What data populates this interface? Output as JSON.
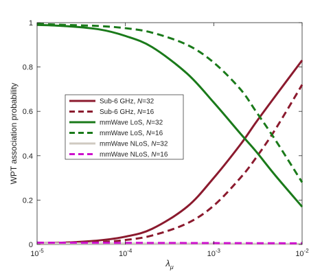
{
  "chart_data": {
    "type": "line",
    "title": "",
    "xlabel": "λ_μ",
    "xlabel_main": "λ",
    "xlabel_sub": "μ",
    "ylabel": "WPT association probability",
    "xscale": "log",
    "xlim": [
      1e-05,
      0.01
    ],
    "ylim": [
      0,
      1
    ],
    "grid": false,
    "legend_position": "center-left",
    "x_ticks": [
      {
        "value": 1e-05,
        "base": "10",
        "exp": "-5"
      },
      {
        "value": 0.0001,
        "base": "10",
        "exp": "-4"
      },
      {
        "value": 0.001,
        "base": "10",
        "exp": "-3"
      },
      {
        "value": 0.01,
        "base": "10",
        "exp": "-2"
      }
    ],
    "y_ticks": [
      {
        "value": 0,
        "label": "0"
      },
      {
        "value": 0.2,
        "label": "0.2"
      },
      {
        "value": 0.4,
        "label": "0.4"
      },
      {
        "value": 0.6,
        "label": "0.6"
      },
      {
        "value": 0.8,
        "label": "0.8"
      },
      {
        "value": 1,
        "label": "1"
      }
    ],
    "series": [
      {
        "name": "Sub-6 GHz, N=32",
        "legend_prefix": "Sub-6 GHz, ",
        "legend_var": "N",
        "legend_suffix": "=32",
        "color": "#8b1a2e",
        "dash": "solid",
        "x": [
          1e-05,
          2e-05,
          5e-05,
          0.0001,
          0.0002,
          0.0005,
          0.001,
          0.002,
          0.003,
          0.005,
          0.01
        ],
        "y": [
          0.005,
          0.008,
          0.018,
          0.035,
          0.07,
          0.17,
          0.3,
          0.45,
          0.55,
          0.67,
          0.83
        ]
      },
      {
        "name": "Sub-6 GHz, N=16",
        "legend_prefix": "Sub-6 GHz, ",
        "legend_var": "N",
        "legend_suffix": "=16",
        "color": "#8b1a2e",
        "dash": "dashed",
        "x": [
          1e-05,
          2e-05,
          5e-05,
          0.0001,
          0.0002,
          0.0005,
          0.001,
          0.002,
          0.003,
          0.005,
          0.01
        ],
        "y": [
          0.003,
          0.005,
          0.01,
          0.02,
          0.04,
          0.095,
          0.175,
          0.3,
          0.39,
          0.52,
          0.72
        ]
      },
      {
        "name": "mmWave LoS, N=32",
        "legend_prefix": "mmWave LoS, ",
        "legend_var": "N",
        "legend_suffix": "=32",
        "color": "#1a7a1a",
        "dash": "solid",
        "x": [
          1e-05,
          2e-05,
          5e-05,
          0.0001,
          0.0002,
          0.0005,
          0.001,
          0.002,
          0.003,
          0.005,
          0.01
        ],
        "y": [
          0.99,
          0.985,
          0.97,
          0.94,
          0.89,
          0.77,
          0.64,
          0.5,
          0.42,
          0.31,
          0.17
        ]
      },
      {
        "name": "mmWave LoS, N=16",
        "legend_prefix": "mmWave LoS, ",
        "legend_var": "N",
        "legend_suffix": "=16",
        "color": "#1a7a1a",
        "dash": "dashed",
        "x": [
          1e-05,
          2e-05,
          5e-05,
          0.0001,
          0.0002,
          0.0005,
          0.001,
          0.002,
          0.003,
          0.005,
          0.01
        ],
        "y": [
          0.995,
          0.99,
          0.985,
          0.975,
          0.955,
          0.9,
          0.82,
          0.7,
          0.6,
          0.47,
          0.28
        ]
      },
      {
        "name": "mmWave NLoS, N=32",
        "legend_prefix": "mmWave NLoS, ",
        "legend_var": "N",
        "legend_suffix": "=32",
        "color": "#cfcac0",
        "dash": "solid",
        "x": [
          1e-05,
          0.0001,
          0.001,
          0.01
        ],
        "y": [
          0.005,
          0.004,
          0.003,
          0.002
        ]
      },
      {
        "name": "mmWave NLoS, N=16",
        "legend_prefix": "mmWave NLoS, ",
        "legend_var": "N",
        "legend_suffix": "=16",
        "color": "#cc11cc",
        "dash": "dashed",
        "x": [
          1e-05,
          0.0001,
          0.001,
          0.01
        ],
        "y": [
          0.008,
          0.007,
          0.006,
          0.005
        ]
      }
    ]
  }
}
